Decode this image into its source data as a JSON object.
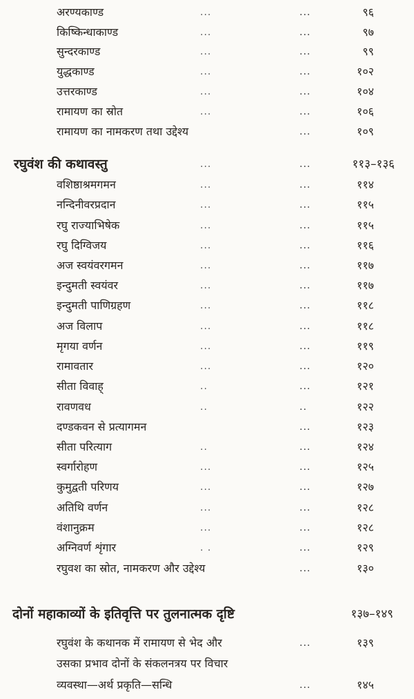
{
  "toc": [
    {
      "type": "entry",
      "title": "अरण्यकाण्ड",
      "lead1": "...",
      "lead2": "...",
      "page": "९६"
    },
    {
      "type": "entry",
      "title": "किष्किन्धाकाण्ड",
      "lead1": "...",
      "lead2": "...",
      "page": "९७"
    },
    {
      "type": "entry",
      "title": "सुन्दरकाण्ड",
      "lead1": "...",
      "lead2": "...",
      "page": "९९"
    },
    {
      "type": "entry",
      "title": "युद्धकाण्ड",
      "lead1": "...",
      "lead2": "...",
      "page": "१०२"
    },
    {
      "type": "entry",
      "title": "उत्तरकाण्ड",
      "lead1": "...",
      "lead2": "...",
      "page": "१०४"
    },
    {
      "type": "entry",
      "title": "रामायण का स्रोत",
      "lead1": "...",
      "lead2": "...",
      "page": "१०६"
    },
    {
      "type": "entry",
      "title": "रामायण का नामकरण तथा उद्देश्य",
      "lead1": "",
      "lead2": "...",
      "page": "१०९"
    },
    {
      "type": "heading",
      "title": "रघुवंश की कथावस्तु",
      "lead1": "...",
      "lead2": "...",
      "page": "११३–१३६"
    },
    {
      "type": "entry",
      "title": "वशिष्ठाश्रमगमन",
      "lead1": "...",
      "lead2": "...",
      "page": "११४"
    },
    {
      "type": "entry",
      "title": "नन्दिनीवरप्रदान",
      "lead1": "...",
      "lead2": "...",
      "page": "११५"
    },
    {
      "type": "entry",
      "title": "रघु राज्याभिषेक",
      "lead1": "...",
      "lead2": "...",
      "page": "११५"
    },
    {
      "type": "entry",
      "title": "रघु दिग्विजय",
      "lead1": "...",
      "lead2": "...",
      "page": "११६"
    },
    {
      "type": "entry",
      "title": "अज स्वयंवरगमन",
      "lead1": "...",
      "lead2": "...",
      "page": "११७"
    },
    {
      "type": "entry",
      "title": "इन्दुमती स्वयंवर",
      "lead1": "...",
      "lead2": "...",
      "page": "११७"
    },
    {
      "type": "entry",
      "title": "इन्दुमती पाणिग्रहण",
      "lead1": "...",
      "lead2": "...",
      "page": "११८"
    },
    {
      "type": "entry",
      "title": "अज विलाप",
      "lead1": "...",
      "lead2": "...",
      "page": "११८"
    },
    {
      "type": "entry",
      "title": "मृगया वर्णन",
      "lead1": "...",
      "lead2": "...",
      "page": "११९"
    },
    {
      "type": "entry",
      "title": "रामावतार",
      "lead1": "...",
      "lead2": "...",
      "page": "१२०"
    },
    {
      "type": "entry",
      "title": "सीता विवाह्",
      "lead1": "..",
      "lead2": "...",
      "page": "१२१"
    },
    {
      "type": "entry",
      "title": "रावणवध",
      "lead1": "..",
      "lead2": "..",
      "page": "१२२"
    },
    {
      "type": "entry",
      "title": "दण्डकवन से प्रत्यागमन",
      "lead1": "",
      "lead2": "...",
      "page": "१२३"
    },
    {
      "type": "entry",
      "title": "सीता परित्याग",
      "lead1": "..",
      "lead2": "...",
      "page": "१२४"
    },
    {
      "type": "entry",
      "title": "स्वर्गारोहण",
      "lead1": "...",
      "lead2": "...",
      "page": "१२५"
    },
    {
      "type": "entry",
      "title": "कुमुद्वती परिणय",
      "lead1": "...",
      "lead2": "...",
      "page": "१२७"
    },
    {
      "type": "entry",
      "title": "अतिथि वर्णन",
      "lead1": "...",
      "lead2": "...",
      "page": "१२८"
    },
    {
      "type": "entry",
      "title": "वंशानुक्रम",
      "lead1": "...",
      "lead2": "...",
      "page": "१२८"
    },
    {
      "type": "entry",
      "title": "अग्निवर्ण शृंगार",
      "lead1": ". .",
      "lead2": "...",
      "page": "१२९"
    },
    {
      "type": "entry",
      "title": "रघुवश का स्रोत, नामकरण और उद्देश्य",
      "lead1": "",
      "lead2": "...",
      "page": "१३०"
    },
    {
      "type": "heading-wide",
      "title": "दोनों महाकाव्यों के इतिवृत्ति पर तुलनात्मक दृष्टि",
      "lead1": "",
      "lead2": "",
      "page": "१३७–१४९"
    },
    {
      "type": "entry",
      "title": "रघुवंश के कथानक में रामायण से भेद और",
      "lead1": "",
      "lead2": "...",
      "page": "१३९"
    },
    {
      "type": "entry",
      "title": "उसका प्रभाव दोनों के संकलनत्रय पर विचार",
      "lead1": "",
      "lead2": "",
      "page": ""
    },
    {
      "type": "entry",
      "title": "व्यवस्था—अर्थ प्रकृति—सन्धि",
      "lead1": "",
      "lead2": "...",
      "page": "१४५"
    }
  ]
}
